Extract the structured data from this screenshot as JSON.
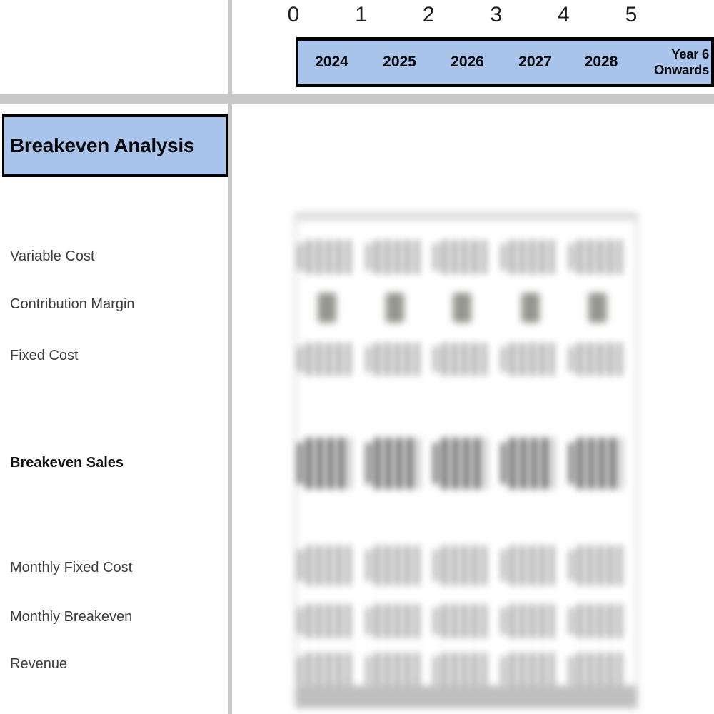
{
  "sheet": {
    "period_indices": [
      "0",
      "1",
      "2",
      "3",
      "4",
      "5"
    ],
    "year_headers": [
      "2024",
      "2025",
      "2026",
      "2027",
      "2028",
      "Year 6 Onwards"
    ],
    "section_title": "Breakeven Analysis",
    "row_labels": [
      {
        "label": "Variable Cost",
        "bold": false
      },
      {
        "label": "Contribution Margin",
        "bold": false
      },
      {
        "label": "Fixed Cost",
        "bold": false
      },
      {
        "label": "Breakeven Sales",
        "bold": true
      },
      {
        "label": "Monthly Fixed Cost",
        "bold": false
      },
      {
        "label": "Monthly Breakeven",
        "bold": false
      },
      {
        "label": "Revenue",
        "bold": false
      }
    ]
  },
  "colors": {
    "header_fill_blue": "#a9c4eb",
    "divider_gray": "#c8c8c8",
    "border_black": "#000000"
  }
}
